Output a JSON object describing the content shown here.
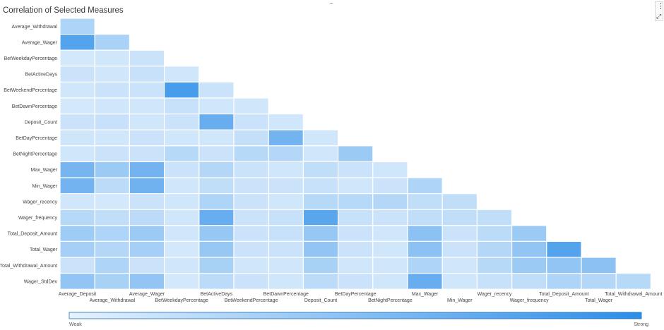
{
  "title": "Correlation of Selected Measures",
  "chart_data": {
    "type": "heatmap",
    "title": "Correlation of Selected Measures",
    "layout": "lower-triangle",
    "rows": [
      "Average_Withdrawal",
      "Average_Wager",
      "BetWeekdayPercentage",
      "BetActiveDays",
      "BetWeekendPercentage",
      "BetDawnPercentage",
      "Deposit_Count",
      "BetDayPercentage",
      "BetNightPercentage",
      "Max_Wager",
      "Min_Wager",
      "Wager_recency",
      "Wager_frequency",
      "Total_Deposit_Amount",
      "Total_Wager",
      "Total_Withdrawal_Amount",
      "Wager_StdDev"
    ],
    "columns": [
      "Average_Deposit",
      "Average_Withdrawal",
      "Average_Wager",
      "BetWeekdayPercentage",
      "BetActiveDays",
      "BetWeekendPercentage",
      "BetDawnPercentage",
      "Deposit_Count",
      "BetDayPercentage",
      "BetNightPercentage",
      "Max_Wager",
      "Min_Wager",
      "Wager_recency",
      "Wager_frequency",
      "Total_Deposit_Amount",
      "Total_Wager",
      "Total_Withdrawal_Amount"
    ],
    "values": [
      [
        0.3
      ],
      [
        0.78,
        0.32
      ],
      [
        0.1,
        0.12,
        0.15
      ],
      [
        0.15,
        0.12,
        0.17,
        0.12
      ],
      [
        0.12,
        0.15,
        0.15,
        0.85,
        0.15
      ],
      [
        0.1,
        0.12,
        0.12,
        0.17,
        0.12,
        0.12
      ],
      [
        0.15,
        0.17,
        0.12,
        0.15,
        0.68,
        0.15,
        0.12
      ],
      [
        0.13,
        0.12,
        0.15,
        0.12,
        0.12,
        0.18,
        0.62,
        0.12
      ],
      [
        0.12,
        0.15,
        0.15,
        0.25,
        0.15,
        0.25,
        0.27,
        0.12,
        0.4
      ],
      [
        0.6,
        0.4,
        0.62,
        0.15,
        0.27,
        0.15,
        0.12,
        0.2,
        0.15,
        0.12
      ],
      [
        0.62,
        0.23,
        0.63,
        0.12,
        0.2,
        0.15,
        0.15,
        0.17,
        0.12,
        0.15,
        0.3
      ],
      [
        0.12,
        0.1,
        0.15,
        0.12,
        0.3,
        0.15,
        0.12,
        0.25,
        0.25,
        0.27,
        0.2,
        0.2
      ],
      [
        0.25,
        0.2,
        0.23,
        0.12,
        0.68,
        0.15,
        0.17,
        0.75,
        0.17,
        0.15,
        0.2,
        0.2,
        0.2
      ],
      [
        0.38,
        0.3,
        0.4,
        0.12,
        0.42,
        0.15,
        0.17,
        0.42,
        0.15,
        0.12,
        0.48,
        0.15,
        0.23,
        0.4
      ],
      [
        0.35,
        0.27,
        0.35,
        0.1,
        0.42,
        0.15,
        0.15,
        0.45,
        0.15,
        0.12,
        0.48,
        0.15,
        0.27,
        0.45,
        0.78
      ],
      [
        0.15,
        0.3,
        0.15,
        0.12,
        0.33,
        0.12,
        0.12,
        0.33,
        0.12,
        0.12,
        0.3,
        0.12,
        0.25,
        0.4,
        0.45,
        0.48
      ],
      [
        0.45,
        0.33,
        0.45,
        0.1,
        0.23,
        0.15,
        0.12,
        0.23,
        0.15,
        0.12,
        0.68,
        0.12,
        0.17,
        0.2,
        0.3,
        0.27,
        0.25
      ]
    ],
    "legend": {
      "min_label": "Weak",
      "max_label": "Strong",
      "placement": "bottom"
    },
    "color_scale": {
      "low": "#e6f2fd",
      "high": "#2b8de8"
    }
  },
  "ui": {
    "top_handle": "....",
    "kebab_icon": "⋮",
    "expand_icon": "⤢"
  }
}
